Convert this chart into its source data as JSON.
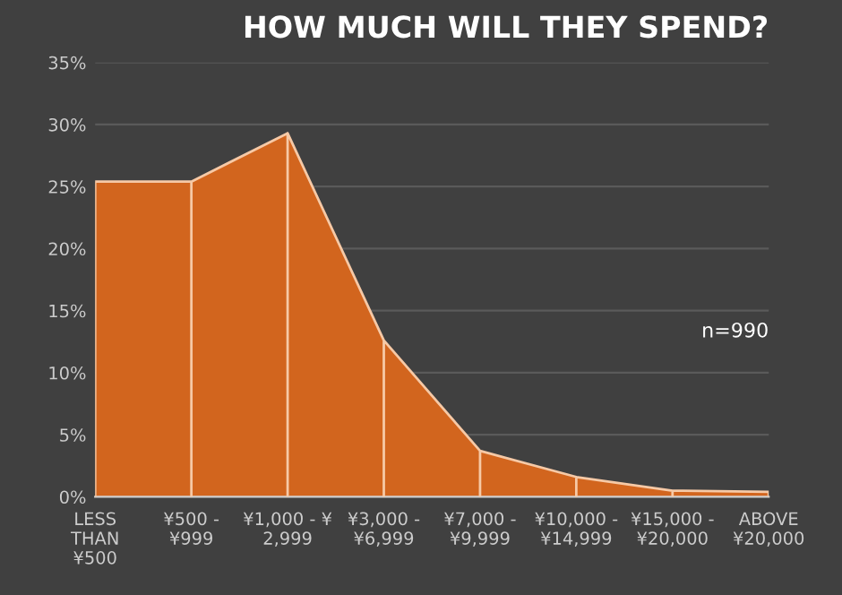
{
  "chart_data": {
    "type": "area",
    "title": "HOW MUCH WILL THEY SPEND?",
    "categories": [
      "LESS\nTHAN\n¥500",
      "¥500 -\n¥999",
      "¥1,000 - ¥\n2,999",
      "¥3,000 -\n¥6,999",
      "¥7,000 -\n¥9,999",
      "¥10,000 -\n¥14,999",
      "¥15,000 -\n¥20,000",
      "ABOVE\n¥20,000"
    ],
    "series": [
      {
        "color": "#d2651e",
        "values": [
          25.4,
          25.4,
          29.3,
          12.6,
          3.7,
          1.6,
          0.5,
          0.4
        ]
      }
    ],
    "ylim": [
      0,
      35
    ],
    "yticks": [
      {
        "value": 0,
        "label": "0%"
      },
      {
        "value": 5,
        "label": "5%"
      },
      {
        "value": 10,
        "label": "10%"
      },
      {
        "value": 15,
        "label": "15%"
      },
      {
        "value": 20,
        "label": "20%"
      },
      {
        "value": 25,
        "label": "25%"
      },
      {
        "value": 30,
        "label": "30%"
      },
      {
        "value": 35,
        "label": "35%"
      }
    ],
    "grid": "y",
    "annotations": [
      "n=990"
    ]
  }
}
